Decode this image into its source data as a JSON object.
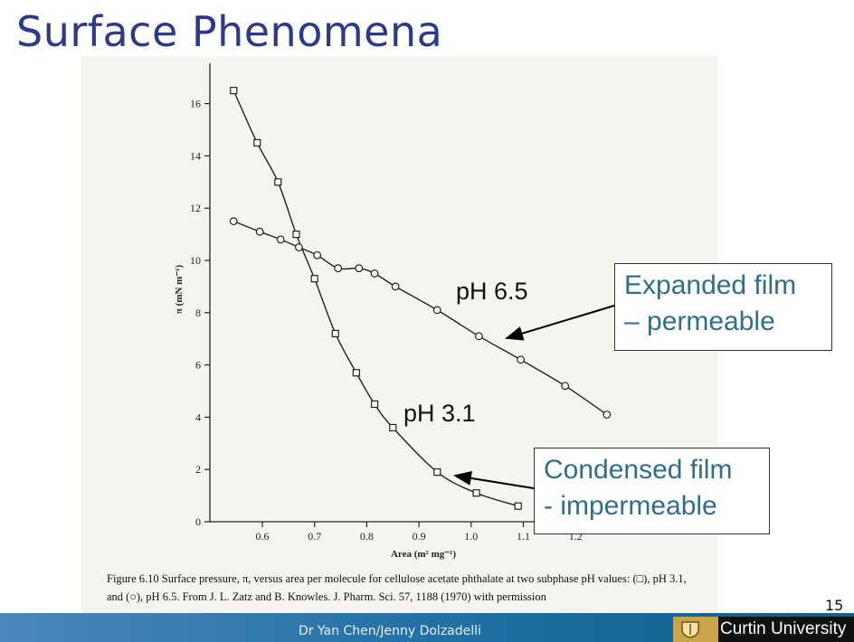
{
  "slide": {
    "title": "Surface Phenomena",
    "page_number": "15",
    "presenter": "Dr Yan Chen/Jenny Dolzadelli",
    "brand": "Curtin University"
  },
  "callouts": {
    "expanded_line1": "Expanded film",
    "expanded_line2": "– permeable",
    "condensed_line1": "Condensed film",
    "condensed_line2": "- impermeable"
  },
  "caption": {
    "text": "Figure 6.10 Surface pressure, π, versus area per molecule for cellulose acetate phthalate at two subphase pH values: (□), pH 3.1, and (○), pH 6.5. From J. L. Zatz and B. Knowles. J. Pharm. Sci. 57, 1188 (1970) with permission"
  },
  "chart_data": {
    "type": "line",
    "xlabel": "Area (m² mg⁻¹)",
    "ylabel": "π (mN m⁻¹)",
    "xlim": [
      0.5,
      1.3
    ],
    "ylim": [
      0,
      17
    ],
    "x_ticks": [
      "0.6",
      "0.7",
      "0.8",
      "0.9",
      "1.0",
      "1.1",
      "1.2"
    ],
    "y_ticks": [
      "0",
      "2",
      "4",
      "6",
      "8",
      "10",
      "12",
      "14",
      "16"
    ],
    "grid": false,
    "series": [
      {
        "name": "pH 3.1",
        "marker": "square",
        "x": [
          0.545,
          0.59,
          0.63,
          0.665,
          0.7,
          0.74,
          0.78,
          0.815,
          0.85,
          0.935,
          1.01,
          1.09
        ],
        "y": [
          16.5,
          14.5,
          13.0,
          11.0,
          9.3,
          7.2,
          5.7,
          4.5,
          3.6,
          1.9,
          1.1,
          0.6
        ]
      },
      {
        "name": "pH 6.5",
        "marker": "circle",
        "x": [
          0.545,
          0.595,
          0.635,
          0.67,
          0.705,
          0.745,
          0.785,
          0.815,
          0.855,
          0.935,
          1.015,
          1.095,
          1.18,
          1.26
        ],
        "y": [
          11.5,
          11.1,
          10.8,
          10.5,
          10.2,
          9.7,
          9.7,
          9.5,
          9.0,
          8.1,
          7.1,
          6.2,
          5.2,
          4.1
        ]
      }
    ]
  }
}
